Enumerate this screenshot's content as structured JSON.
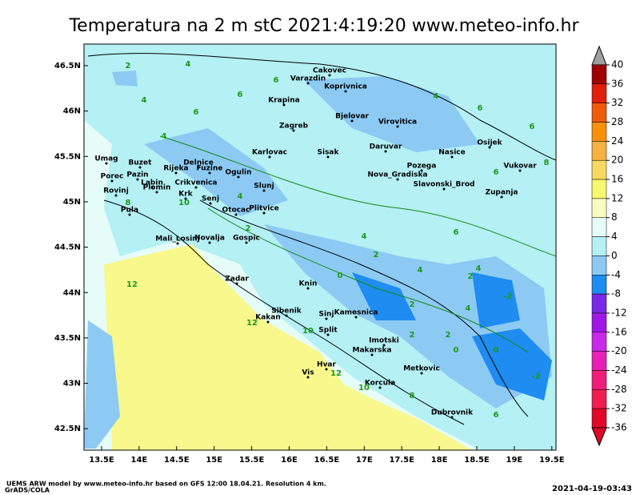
{
  "title": "Temperatura na 2 m stC 2021:4:19:20 www.meteo-info.hr",
  "xticks": [
    {
      "value": 13.5,
      "label": "13.5E"
    },
    {
      "value": 14,
      "label": "14E"
    },
    {
      "value": 14.5,
      "label": "14.5E"
    },
    {
      "value": 15,
      "label": "15E"
    },
    {
      "value": 15.5,
      "label": "15.5E"
    },
    {
      "value": 16,
      "label": "16E"
    },
    {
      "value": 16.5,
      "label": "16.5E"
    },
    {
      "value": 17,
      "label": "17E"
    },
    {
      "value": 17.5,
      "label": "17.5E"
    },
    {
      "value": 18,
      "label": "18E"
    },
    {
      "value": 18.5,
      "label": "18.5E"
    },
    {
      "value": 19,
      "label": "19E"
    },
    {
      "value": 19.5,
      "label": "19.5E"
    }
  ],
  "yticks": [
    {
      "value": 46.5,
      "label": "46.5N"
    },
    {
      "value": 46,
      "label": "46N"
    },
    {
      "value": 45.5,
      "label": "45.5N"
    },
    {
      "value": 45,
      "label": "45N"
    },
    {
      "value": 44.5,
      "label": "44.5N"
    },
    {
      "value": 44,
      "label": "44N"
    },
    {
      "value": 43.5,
      "label": "43.5N"
    },
    {
      "value": 43,
      "label": "43N"
    },
    {
      "value": 42.5,
      "label": "42.5N"
    }
  ],
  "colorbar": {
    "ticks": [
      40,
      36,
      32,
      28,
      24,
      20,
      16,
      12,
      8,
      4,
      0,
      -4,
      -8,
      -12,
      -16,
      -20,
      -24,
      -28,
      -32,
      -36
    ],
    "colors": [
      "#a00000",
      "#e0200a",
      "#f05a0a",
      "#f8900a",
      "#f8b040",
      "#f8d860",
      "#f8f870",
      "#f8fcc0",
      "#e6fcf8",
      "#b4f0f4",
      "#8ccaf4",
      "#1e8cf0",
      "#7a28e8",
      "#a018e8",
      "#c828e8",
      "#e820b8",
      "#f01e78",
      "#f01e50",
      "#e00828"
    ]
  },
  "cities": [
    "Cakovec",
    "Varazdin",
    "Koprivnica",
    "Krapina",
    "Zagreb",
    "Bjelovar",
    "Virovitica",
    "Osijek",
    "Karlovac",
    "Sisak",
    "Daruvar",
    "Nasice",
    "Umag",
    "Buzet",
    "Pazin",
    "Porec",
    "Rijeka",
    "Delnice",
    "Fuzine",
    "Ogulin",
    "Pozega",
    "Vukovar",
    "Nova_Gradiska",
    "Slavonski_Brod",
    "Rovinj",
    "Labin",
    "Plomin",
    "Crikvenica",
    "Slunj",
    "Zupanja",
    "Krk",
    "Senj",
    "Otocac",
    "Plitvice",
    "Pula",
    "Mali_Losinj",
    "Novalja",
    "Gospic",
    "Zadar",
    "Knin",
    "Sibenik",
    "Sinj",
    "Kamesnica",
    "Kakan",
    "Split",
    "Imotski",
    "Makarska",
    "Hvar",
    "Vis",
    "Metkovic",
    "Korcula",
    "Dubrovnik"
  ],
  "contour_labels": [
    2,
    4,
    6,
    4,
    6,
    4,
    6,
    4,
    6,
    6,
    8,
    6,
    8,
    10,
    12,
    4,
    2,
    4,
    2,
    0,
    2,
    4,
    12,
    10,
    2,
    0,
    -2,
    2,
    0,
    -2,
    12,
    10,
    8,
    6,
    4,
    2,
    4,
    6
  ],
  "footer_left": "UEMS ARW model by www.meteo-info.hr based on GFS 12:00 18.04.21. Resolution 4 km.",
  "footer_brand": "GrADS/COLA",
  "footer_right": "2021-04-19-03:43"
}
